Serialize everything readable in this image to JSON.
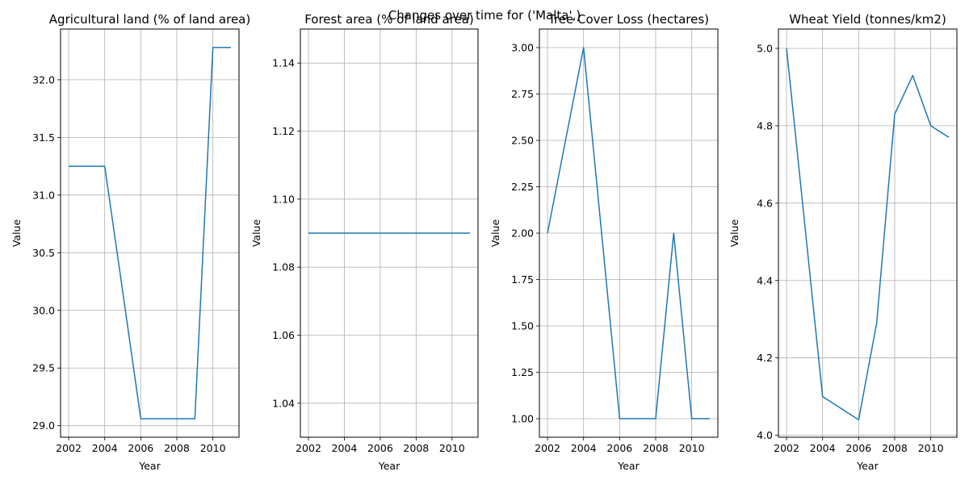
{
  "figure": {
    "title": "Changes over time for ('Malta',)",
    "line_color": "#1f77b4",
    "grid_color": "#b0b0b0"
  },
  "chart_data": [
    {
      "type": "line",
      "title": "Agricultural land (% of land area)",
      "xlabel": "Year",
      "ylabel": "Value",
      "grid": true,
      "xlim": [
        2001.55,
        2011.45
      ],
      "ylim": [
        28.9,
        32.44
      ],
      "xticks": [
        2002,
        2004,
        2006,
        2008,
        2010
      ],
      "yticks": [
        29.0,
        29.5,
        30.0,
        30.5,
        31.0,
        31.5,
        32.0
      ],
      "ytick_labels": [
        "29.0",
        "29.5",
        "30.0",
        "30.5",
        "31.0",
        "31.5",
        "32.0"
      ],
      "series": [
        {
          "x": [
            2002,
            2003,
            2004,
            2005,
            2006,
            2007,
            2008,
            2009,
            2010,
            2011
          ],
          "values": [
            31.25,
            31.25,
            31.25,
            30.16,
            29.06,
            29.06,
            29.06,
            29.06,
            32.28,
            32.28
          ]
        }
      ]
    },
    {
      "type": "line",
      "title": "Forest area (% of land area)",
      "xlabel": "Year",
      "ylabel": "Value",
      "grid": true,
      "xlim": [
        2001.55,
        2011.45
      ],
      "ylim": [
        1.03,
        1.15
      ],
      "xticks": [
        2002,
        2004,
        2006,
        2008,
        2010
      ],
      "yticks": [
        1.04,
        1.06,
        1.08,
        1.1,
        1.12,
        1.14
      ],
      "ytick_labels": [
        "1.04",
        "1.06",
        "1.08",
        "1.10",
        "1.12",
        "1.14"
      ],
      "series": [
        {
          "x": [
            2002,
            2003,
            2004,
            2005,
            2006,
            2007,
            2008,
            2009,
            2010,
            2011
          ],
          "values": [
            1.09,
            1.09,
            1.09,
            1.09,
            1.09,
            1.09,
            1.09,
            1.09,
            1.09,
            1.09
          ]
        }
      ]
    },
    {
      "type": "line",
      "title": "Tree Cover Loss (hectares)",
      "xlabel": "Year",
      "ylabel": "Value",
      "grid": true,
      "xlim": [
        2001.55,
        2011.45
      ],
      "ylim": [
        0.9,
        3.1
      ],
      "xticks": [
        2002,
        2004,
        2006,
        2008,
        2010
      ],
      "yticks": [
        1.0,
        1.25,
        1.5,
        1.75,
        2.0,
        2.25,
        2.5,
        2.75,
        3.0
      ],
      "ytick_labels": [
        "1.00",
        "1.25",
        "1.50",
        "1.75",
        "2.00",
        "2.25",
        "2.50",
        "2.75",
        "3.00"
      ],
      "series": [
        {
          "x": [
            2002,
            2003,
            2004,
            2005,
            2006,
            2007,
            2008,
            2009,
            2010,
            2011
          ],
          "values": [
            2,
            2.5,
            3,
            2,
            1,
            1,
            1,
            2,
            1,
            1
          ]
        }
      ]
    },
    {
      "type": "line",
      "title": "Wheat Yield (tonnes/km2)",
      "xlabel": "Year",
      "ylabel": "Value",
      "grid": true,
      "xlim": [
        2001.55,
        2011.45
      ],
      "ylim": [
        3.995,
        5.05
      ],
      "xticks": [
        2002,
        2004,
        2006,
        2008,
        2010
      ],
      "yticks": [
        4.0,
        4.2,
        4.4,
        4.6,
        4.8,
        5.0
      ],
      "ytick_labels": [
        "4.0",
        "4.2",
        "4.4",
        "4.6",
        "4.8",
        "5.0"
      ],
      "series": [
        {
          "x": [
            2002,
            2003,
            2004,
            2005,
            2006,
            2007,
            2008,
            2009,
            2010,
            2011
          ],
          "values": [
            5.0,
            4.55,
            4.1,
            4.07,
            4.04,
            4.29,
            4.83,
            4.93,
            4.8,
            4.77
          ]
        }
      ]
    }
  ]
}
